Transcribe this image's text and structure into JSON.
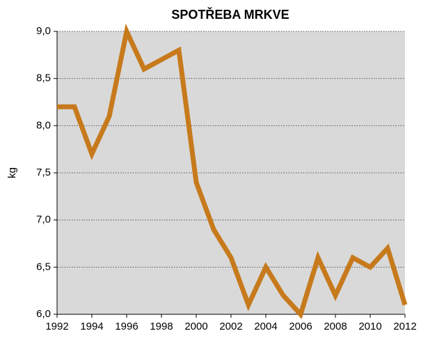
{
  "chart_data": {
    "type": "line",
    "title": "SPOTŘEBA MRKVE",
    "y_label": "kg",
    "x": [
      1992,
      1993,
      1994,
      1995,
      1996,
      1997,
      1998,
      1999,
      2000,
      2001,
      2002,
      2003,
      2004,
      2005,
      2006,
      2007,
      2008,
      2009,
      2010,
      2011,
      2012
    ],
    "series": [
      {
        "name": null,
        "color": "#c77a1c",
        "values": [
          8.2,
          8.2,
          7.7,
          8.1,
          9.0,
          8.6,
          8.7,
          8.8,
          7.4,
          6.9,
          6.6,
          6.1,
          6.5,
          6.2,
          6.0,
          6.6,
          6.2,
          6.6,
          6.5,
          6.7,
          6.1
        ]
      }
    ],
    "xlim": [
      1992,
      2012
    ],
    "xticks": [
      1992,
      1994,
      1996,
      1998,
      2000,
      2002,
      2004,
      2006,
      2008,
      2010,
      2012
    ],
    "ylim": [
      6,
      9
    ],
    "yticks": [
      {
        "value": 6,
        "label": "6,0"
      },
      {
        "value": 6.5,
        "label": "6,5"
      },
      {
        "value": 7,
        "label": "7,0"
      },
      {
        "value": 7.5,
        "label": "7,5"
      },
      {
        "value": 8,
        "label": "8,0"
      },
      {
        "value": 8.5,
        "label": "8,5"
      },
      {
        "value": 9,
        "label": "9,0"
      }
    ],
    "grid": true
  }
}
